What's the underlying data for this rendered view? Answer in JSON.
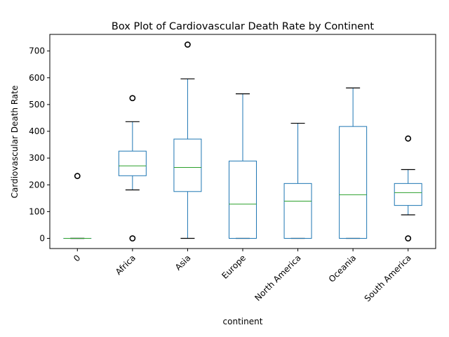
{
  "chart_data": {
    "type": "box",
    "title": "Box Plot of Cardiovascular Death Rate by Continent",
    "xlabel": "continent",
    "ylabel": "Cardiovascular Death Rate",
    "ylim": [
      -38,
      762
    ],
    "yticks": [
      0,
      100,
      200,
      300,
      400,
      500,
      600,
      700
    ],
    "categories": [
      "0",
      "Africa",
      "Asia",
      "Europe",
      "North America",
      "Oceania",
      "South America"
    ],
    "boxes": [
      {
        "category": "0",
        "whislo": 0,
        "q1": 0,
        "med": 0,
        "q3": 0,
        "whishi": 0,
        "fliers": [
          233
        ]
      },
      {
        "category": "Africa",
        "whislo": 181,
        "q1": 234,
        "med": 271,
        "q3": 326,
        "whishi": 436,
        "fliers": [
          524,
          0
        ]
      },
      {
        "category": "Asia",
        "whislo": 0,
        "q1": 175,
        "med": 265,
        "q3": 371,
        "whishi": 596,
        "fliers": [
          724
        ]
      },
      {
        "category": "Europe",
        "whislo": 0,
        "q1": 0,
        "med": 128,
        "q3": 289,
        "whishi": 540,
        "fliers": []
      },
      {
        "category": "North America",
        "whislo": 0,
        "q1": 0,
        "med": 139,
        "q3": 205,
        "whishi": 430,
        "fliers": []
      },
      {
        "category": "Oceania",
        "whislo": 0,
        "q1": 0,
        "med": 163,
        "q3": 418,
        "whishi": 562,
        "fliers": []
      },
      {
        "category": "South America",
        "whislo": 88,
        "q1": 123,
        "med": 171,
        "q3": 205,
        "whishi": 257,
        "fliers": [
          373,
          0
        ]
      }
    ],
    "grid": false,
    "legend": "none",
    "colors": {
      "box": "#1f77b4",
      "median": "#2ca02c",
      "whisker_cap": "#000000",
      "flier": "#000000"
    }
  }
}
